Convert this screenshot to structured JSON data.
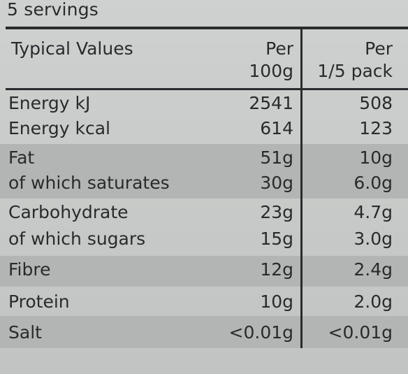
{
  "servings": "5 servings",
  "header": {
    "label": "Typical Values",
    "col1_line1": "Per",
    "col1_line2": "100g",
    "col2_line1": "Per",
    "col2_line2": "1/5 pack"
  },
  "rows": [
    {
      "name": "Energy kJ",
      "per100g": "2541",
      "perPack": "508"
    },
    {
      "name": "Energy kcal",
      "per100g": "614",
      "perPack": "123"
    },
    {
      "name": "Fat",
      "per100g": "51g",
      "perPack": "10g"
    },
    {
      "name": "of which saturates",
      "per100g": "30g",
      "perPack": "6.0g"
    },
    {
      "name": "Carbohydrate",
      "per100g": "23g",
      "perPack": "4.7g"
    },
    {
      "name": "of which sugars",
      "per100g": "15g",
      "perPack": "3.0g"
    },
    {
      "name": "Fibre",
      "per100g": "12g",
      "perPack": "2.4g"
    },
    {
      "name": "Protein",
      "per100g": "10g",
      "perPack": "2.0g"
    },
    {
      "name": "Salt",
      "per100g": "<0.01g",
      "perPack": "<0.01g"
    }
  ]
}
